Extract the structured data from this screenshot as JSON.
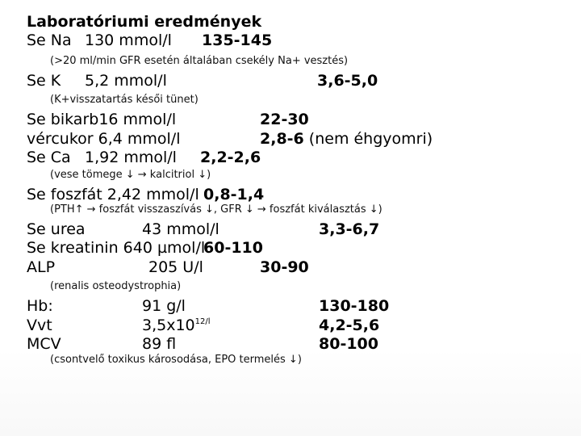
{
  "title": "Laboratóriumi eredmények",
  "na": {
    "label": "Se Na",
    "value": "130 mmol/l",
    "range": "135-145"
  },
  "note_na": "(>20 ml/min GFR esetén általában csekély Na+ vesztés)",
  "k": {
    "label": "Se K",
    "value": "5,2 mmol/l",
    "range": "3,6-5,0"
  },
  "note_k": "(K+visszatartás késői tünet)",
  "bikarb": {
    "label": "Se bikarb16 mmol/l",
    "range": "22-30"
  },
  "glucose": {
    "label": "vércukor 6,4 mmol/l",
    "range": "2,8-6",
    "note": " (nem éhgyomri)"
  },
  "ca": {
    "label": "Se Ca",
    "value": "1,92  mmol/l",
    "range": "2,2-2,6"
  },
  "note_ca": "(vese tömege ↓ → kalcitriol ↓)",
  "phosphate": {
    "label": "Se foszfát  2,42 mmol/l",
    "range": "0,8-1,4"
  },
  "note_phosphate": "(PTH↑ → foszfát visszaszívás ↓, GFR ↓ → foszfát kiválasztás ↓)",
  "urea": {
    "label": "Se urea",
    "value": "43 mmol/l",
    "range": "3,3-6,7"
  },
  "creatinine": {
    "label": "Se kreatinin 640 µmol/l",
    "range": "60-110"
  },
  "alp": {
    "label": "ALP",
    "value": "205 U/l",
    "range": "30-90"
  },
  "note_renal": "(renalis osteodystrophia)",
  "hb": {
    "label": "Hb:",
    "value": "91 g/l",
    "range": "130-180"
  },
  "rbc": {
    "label": "Vvt",
    "value_base": "3,5x10",
    "value_exp": "12/l",
    "range": "4,2-5,6"
  },
  "mcv": {
    "label": "MCV",
    "value": "89 fl",
    "range": "80-100"
  },
  "note_bone": "(csontvelő toxikus károsodása, EPO termelés ↓)"
}
